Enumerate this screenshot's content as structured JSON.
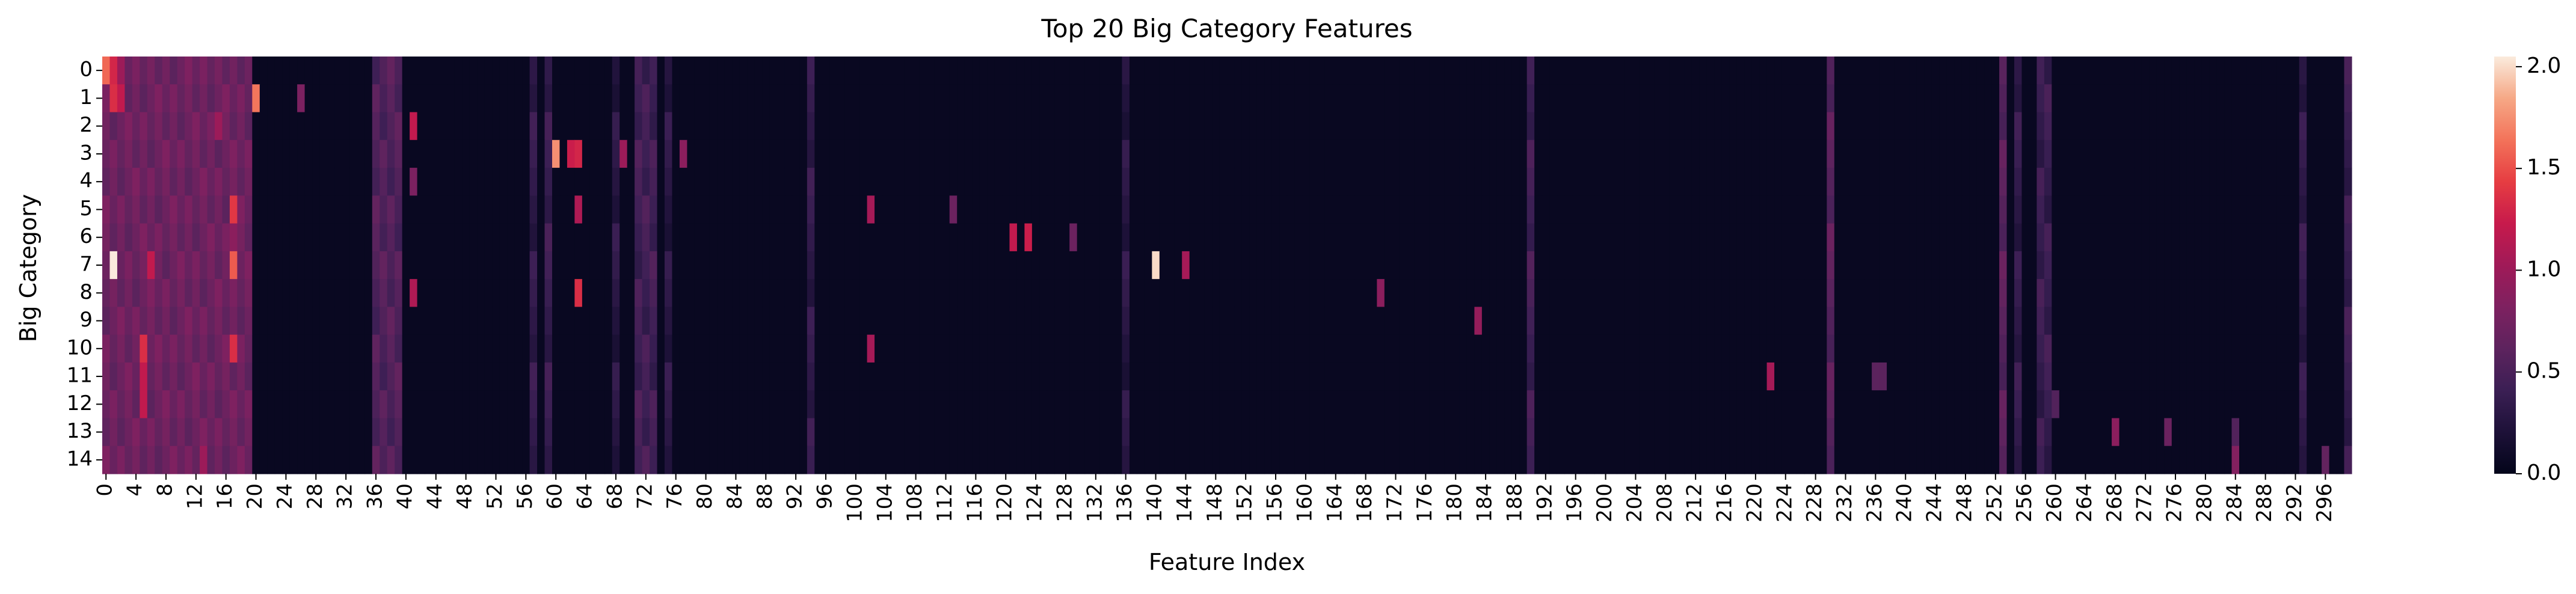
{
  "chart_data": {
    "type": "heatmap",
    "title": "Top 20 Big Category Features",
    "xlabel": "Feature Index",
    "ylabel": "Big Category",
    "rows": [
      "0",
      "1",
      "2",
      "3",
      "4",
      "5",
      "6",
      "7",
      "8",
      "9",
      "10",
      "11",
      "12",
      "13",
      "14"
    ],
    "n_columns": 300,
    "x_tick_labels": [
      "0",
      "4",
      "8",
      "12",
      "16",
      "20",
      "24",
      "28",
      "32",
      "36",
      "40",
      "44",
      "48",
      "52",
      "56",
      "60",
      "64",
      "68",
      "72",
      "76",
      "80",
      "84",
      "88",
      "92",
      "96",
      "100",
      "104",
      "108",
      "112",
      "116",
      "120",
      "124",
      "128",
      "132",
      "136",
      "140",
      "144",
      "148",
      "152",
      "156",
      "160",
      "164",
      "168",
      "172",
      "176",
      "180",
      "184",
      "188",
      "192",
      "196",
      "200",
      "204",
      "208",
      "212",
      "216",
      "220",
      "224",
      "228",
      "232",
      "236",
      "240",
      "244",
      "248",
      "252",
      "256",
      "260",
      "264",
      "268",
      "272",
      "276",
      "280",
      "284",
      "288",
      "292",
      "296"
    ],
    "colorbar": {
      "min": 0.0,
      "max": 2.05,
      "tick_labels": [
        "0.0",
        "0.5",
        "1.0",
        "1.5",
        "2.0"
      ],
      "ticks": [
        0.0,
        0.5,
        1.0,
        1.5,
        2.0
      ]
    },
    "background_value": 0.05,
    "column_bands": [
      {
        "cols": [
          0,
          19
        ],
        "value": 0.72
      },
      {
        "cols": [
          36,
          39
        ],
        "value": 0.55
      },
      {
        "cols": [
          57,
          57
        ],
        "value": 0.35
      },
      {
        "cols": [
          59,
          59
        ],
        "value": 0.4
      },
      {
        "cols": [
          68,
          68
        ],
        "value": 0.3
      },
      {
        "cols": [
          71,
          73
        ],
        "value": 0.45
      },
      {
        "cols": [
          75,
          75
        ],
        "value": 0.3
      },
      {
        "cols": [
          94,
          94
        ],
        "value": 0.35
      },
      {
        "cols": [
          136,
          136
        ],
        "value": 0.3
      },
      {
        "cols": [
          190,
          190
        ],
        "value": 0.45
      },
      {
        "cols": [
          230,
          230
        ],
        "value": 0.6
      },
      {
        "cols": [
          253,
          253
        ],
        "value": 0.6
      },
      {
        "cols": [
          255,
          255
        ],
        "value": 0.35
      },
      {
        "cols": [
          258,
          259
        ],
        "value": 0.4
      },
      {
        "cols": [
          293,
          293
        ],
        "value": 0.35
      },
      {
        "cols": [
          299,
          299
        ],
        "value": 0.4
      }
    ],
    "cells": [
      {
        "row": 0,
        "col": 0,
        "value": 1.6
      },
      {
        "row": 0,
        "col": 1,
        "value": 1.3
      },
      {
        "row": 0,
        "col": 2,
        "value": 1.0
      },
      {
        "row": 1,
        "col": 1,
        "value": 1.35
      },
      {
        "row": 1,
        "col": 2,
        "value": 1.2
      },
      {
        "row": 1,
        "col": 20,
        "value": 1.65
      },
      {
        "row": 1,
        "col": 26,
        "value": 0.8
      },
      {
        "row": 2,
        "col": 41,
        "value": 1.2
      },
      {
        "row": 2,
        "col": 15,
        "value": 1.0
      },
      {
        "row": 3,
        "col": 60,
        "value": 1.75
      },
      {
        "row": 3,
        "col": 62,
        "value": 1.25
      },
      {
        "row": 3,
        "col": 63,
        "value": 1.3
      },
      {
        "row": 3,
        "col": 69,
        "value": 1.0
      },
      {
        "row": 3,
        "col": 77,
        "value": 0.9
      },
      {
        "row": 4,
        "col": 41,
        "value": 0.8
      },
      {
        "row": 5,
        "col": 17,
        "value": 1.4
      },
      {
        "row": 5,
        "col": 63,
        "value": 1.1
      },
      {
        "row": 5,
        "col": 102,
        "value": 1.05
      },
      {
        "row": 5,
        "col": 113,
        "value": 0.7
      },
      {
        "row": 6,
        "col": 121,
        "value": 1.2
      },
      {
        "row": 6,
        "col": 123,
        "value": 1.25
      },
      {
        "row": 6,
        "col": 129,
        "value": 0.7
      },
      {
        "row": 6,
        "col": 17,
        "value": 0.9
      },
      {
        "row": 7,
        "col": 1,
        "value": 2.05
      },
      {
        "row": 7,
        "col": 6,
        "value": 1.2
      },
      {
        "row": 7,
        "col": 17,
        "value": 1.55
      },
      {
        "row": 7,
        "col": 140,
        "value": 2.0
      },
      {
        "row": 7,
        "col": 144,
        "value": 1.05
      },
      {
        "row": 8,
        "col": 41,
        "value": 1.1
      },
      {
        "row": 8,
        "col": 63,
        "value": 1.35
      },
      {
        "row": 8,
        "col": 170,
        "value": 0.9
      },
      {
        "row": 9,
        "col": 183,
        "value": 0.95
      },
      {
        "row": 10,
        "col": 5,
        "value": 1.35
      },
      {
        "row": 10,
        "col": 17,
        "value": 1.35
      },
      {
        "row": 10,
        "col": 102,
        "value": 1.05
      },
      {
        "row": 11,
        "col": 222,
        "value": 1.05
      },
      {
        "row": 11,
        "col": 5,
        "value": 1.2
      },
      {
        "row": 11,
        "col": 236,
        "value": 0.6
      },
      {
        "row": 11,
        "col": 237,
        "value": 0.6
      },
      {
        "row": 12,
        "col": 5,
        "value": 1.2
      },
      {
        "row": 12,
        "col": 260,
        "value": 0.55
      },
      {
        "row": 13,
        "col": 268,
        "value": 0.9
      },
      {
        "row": 13,
        "col": 275,
        "value": 0.7
      },
      {
        "row": 13,
        "col": 284,
        "value": 0.55
      },
      {
        "row": 14,
        "col": 284,
        "value": 0.85
      },
      {
        "row": 14,
        "col": 296,
        "value": 0.65
      },
      {
        "row": 14,
        "col": 13,
        "value": 1.0
      }
    ]
  }
}
